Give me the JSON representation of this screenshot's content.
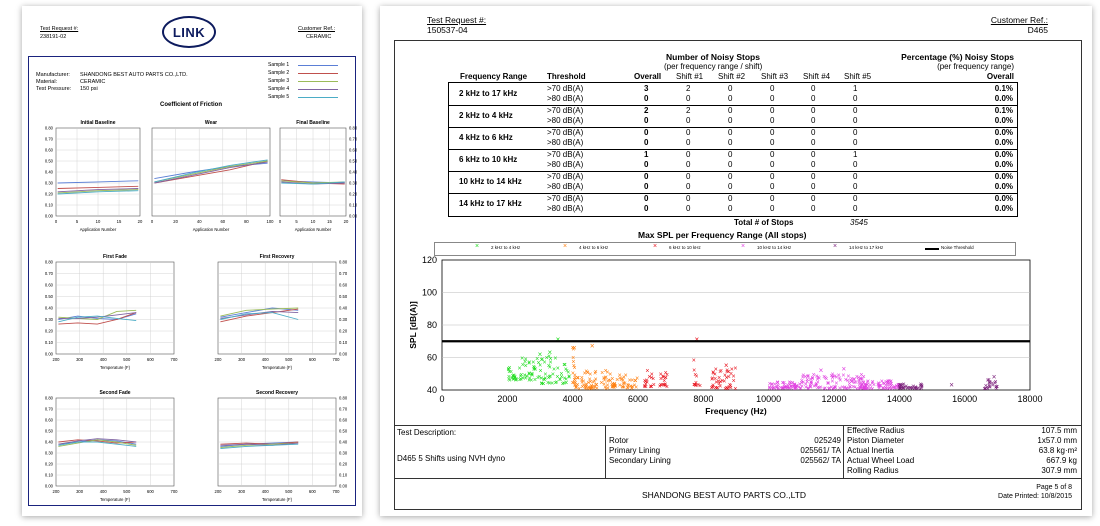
{
  "left_page": {
    "test_request_label": "Test Request #:",
    "test_request_value": "238191-02",
    "customer_ref_label": "Customer Ref.:",
    "customer_ref_value": "CERAMIC",
    "logo_text": "LINK",
    "info": [
      {
        "label": "Manufacturer:",
        "value": "SHANDONG BEST AUTO PARTS CO.,LTD."
      },
      {
        "label": "Material:",
        "value": "CERAMIC"
      },
      {
        "label": "Test Pressure:",
        "value": "150 psi"
      }
    ],
    "samples": [
      {
        "name": "Sample 1",
        "color": "#5b7fd6"
      },
      {
        "name": "Sample 2",
        "color": "#c0504d"
      },
      {
        "name": "Sample 3",
        "color": "#9bbb59"
      },
      {
        "name": "Sample 4",
        "color": "#8064a2"
      },
      {
        "name": "Sample 5",
        "color": "#4bacc6"
      }
    ],
    "cof_title": "Coefficient of Friction",
    "panels": {
      "initial_baseline": "Initial Baseline",
      "wear": "Wear",
      "final_baseline": "Final Baseline",
      "first_fade": "First Fade",
      "first_recovery": "First Recovery",
      "second_fade": "Second Fade",
      "second_recovery": "Second Recovery"
    },
    "axis_labels": {
      "application_number": "Application Number",
      "temperature": "Temperature (F)"
    },
    "y_ticks": [
      "0.80",
      "0.70",
      "0.60",
      "0.50",
      "0.40",
      "0.30",
      "0.20",
      "0.10",
      "0.00"
    ],
    "x_ticks_baseline": [
      "0",
      "5",
      "10",
      "15",
      "20"
    ],
    "x_ticks_wear": [
      "0",
      "20",
      "40",
      "60",
      "80",
      "100"
    ],
    "x_ticks_temp": [
      "200",
      "300",
      "400",
      "500",
      "600",
      "700"
    ]
  },
  "right_page": {
    "test_request_label": "Test Request #:",
    "test_request_value": "150537-04",
    "customer_ref_label": "Customer Ref.:",
    "customer_ref_value": "D465",
    "table_title_1": "Number of Noisy Stops",
    "table_subtitle_1": "(per frequency range / shift)",
    "table_title_2": "Percentage (%) Noisy Stops",
    "table_subtitle_2": "(per frequency range)",
    "columns": [
      "Frequency Range",
      "Threshold",
      "Overall",
      "Shift #1",
      "Shift #2",
      "Shift #3",
      "Shift #4",
      "Shift #5",
      "Overall"
    ],
    "rows": [
      {
        "range": "2 kHz to 17 kHz",
        "sub": [
          {
            "threshold": ">70 dB(A)",
            "overall": "3",
            "s1": "2",
            "s2": "0",
            "s3": "0",
            "s4": "0",
            "s5": "1",
            "pct": "0.1%"
          },
          {
            "threshold": ">80 dB(A)",
            "overall": "0",
            "s1": "0",
            "s2": "0",
            "s3": "0",
            "s4": "0",
            "s5": "0",
            "pct": "0.0%"
          }
        ]
      },
      {
        "range": "2 kHz to 4 kHz",
        "sub": [
          {
            "threshold": ">70 dB(A)",
            "overall": "2",
            "s1": "2",
            "s2": "0",
            "s3": "0",
            "s4": "0",
            "s5": "0",
            "pct": "0.1%"
          },
          {
            "threshold": ">80 dB(A)",
            "overall": "0",
            "s1": "0",
            "s2": "0",
            "s3": "0",
            "s4": "0",
            "s5": "0",
            "pct": "0.0%"
          }
        ]
      },
      {
        "range": "4 kHz to 6 kHz",
        "sub": [
          {
            "threshold": ">70 dB(A)",
            "overall": "0",
            "s1": "0",
            "s2": "0",
            "s3": "0",
            "s4": "0",
            "s5": "0",
            "pct": "0.0%"
          },
          {
            "threshold": ">80 dB(A)",
            "overall": "0",
            "s1": "0",
            "s2": "0",
            "s3": "0",
            "s4": "0",
            "s5": "0",
            "pct": "0.0%"
          }
        ]
      },
      {
        "range": "6 kHz to 10 kHz",
        "sub": [
          {
            "threshold": ">70 dB(A)",
            "overall": "1",
            "s1": "0",
            "s2": "0",
            "s3": "0",
            "s4": "0",
            "s5": "1",
            "pct": "0.0%"
          },
          {
            "threshold": ">80 dB(A)",
            "overall": "0",
            "s1": "0",
            "s2": "0",
            "s3": "0",
            "s4": "0",
            "s5": "0",
            "pct": "0.0%"
          }
        ]
      },
      {
        "range": "10 kHz to 14 kHz",
        "sub": [
          {
            "threshold": ">70 dB(A)",
            "overall": "0",
            "s1": "0",
            "s2": "0",
            "s3": "0",
            "s4": "0",
            "s5": "0",
            "pct": "0.0%"
          },
          {
            "threshold": ">80 dB(A)",
            "overall": "0",
            "s1": "0",
            "s2": "0",
            "s3": "0",
            "s4": "0",
            "s5": "0",
            "pct": "0.0%"
          }
        ]
      },
      {
        "range": "14 kHz to 17 kHz",
        "sub": [
          {
            "threshold": ">70 dB(A)",
            "overall": "0",
            "s1": "0",
            "s2": "0",
            "s3": "0",
            "s4": "0",
            "s5": "0",
            "pct": "0.0%"
          },
          {
            "threshold": ">80 dB(A)",
            "overall": "0",
            "s1": "0",
            "s2": "0",
            "s3": "0",
            "s4": "0",
            "s5": "0",
            "pct": "0.0%"
          }
        ]
      }
    ],
    "total_label": "Total # of Stops",
    "total_value": "3545",
    "chart_title": "Max SPL per Frequency Range (All stops)",
    "legend": [
      {
        "label": "2 kHz to 4 kHz",
        "color": "#22dd22"
      },
      {
        "label": "4 kHz to 6 kHz",
        "color": "#ff7f0e"
      },
      {
        "label": "6 kHz to 10 kHz",
        "color": "#e8141e"
      },
      {
        "label": "10 kHz to 14 kHz",
        "color": "#e040e0"
      },
      {
        "label": "14 kHz to 17 kHz",
        "color": "#7a1f7a"
      },
      {
        "label": "Noise Threshold",
        "color": "#000000"
      }
    ],
    "description_label": "Test Description:",
    "description_value": "D465 5 Shifts using NVH dyno",
    "components": [
      {
        "label": "Rotor",
        "value": "025249"
      },
      {
        "label": "Primary Lining",
        "value": "025561/ TA"
      },
      {
        "label": "Secondary Lining",
        "value": "025562/ TA"
      }
    ],
    "specs": [
      {
        "label": "Effective Radius",
        "value": "107.5 mm"
      },
      {
        "label": "Piston Diameter",
        "value": "1x57.0 mm"
      },
      {
        "label": "Actual Inertia",
        "value": "63.8 kg·m²"
      },
      {
        "label": "Actual Wheel Load",
        "value": "667.9 kg"
      },
      {
        "label": "Rolling Radius",
        "value": "307.9 mm"
      }
    ],
    "footer_company": "SHANDONG BEST AUTO PARTS CO.,LTD",
    "page_label": "Page 5 of 8",
    "date_label": "Date Printed: 10/8/2015"
  },
  "chart_data": {
    "type": "scatter",
    "title": "Max SPL per Frequency Range (All stops)",
    "xlabel": "Frequency (Hz)",
    "ylabel": "SPL [dB(A)]",
    "xlim": [
      0,
      18000
    ],
    "ylim": [
      40,
      120
    ],
    "x_ticks": [
      0,
      2000,
      4000,
      6000,
      8000,
      10000,
      12000,
      14000,
      16000,
      18000
    ],
    "y_ticks": [
      40,
      60,
      80,
      100,
      120
    ],
    "threshold": 70,
    "legend_placement": "top",
    "series": [
      {
        "name": "2 kHz to 4 kHz",
        "color": "#22dd22",
        "clusters": [
          [
            2000,
            2400,
            46,
            54
          ],
          [
            2400,
            3000,
            46,
            60
          ],
          [
            3000,
            3600,
            44,
            62
          ],
          [
            3600,
            3900,
            44,
            56
          ]
        ],
        "peaks": [
          [
            3550,
            71
          ],
          [
            3300,
            63
          ],
          [
            3000,
            62
          ]
        ]
      },
      {
        "name": "4 kHz to 6 kHz",
        "color": "#ff7f0e",
        "clusters": [
          [
            4000,
            5200,
            41,
            52
          ],
          [
            5200,
            6000,
            41,
            50
          ],
          [
            4000,
            4100,
            44,
            67
          ]
        ],
        "peaks": [
          [
            4600,
            67
          ],
          [
            4050,
            66
          ]
        ]
      },
      {
        "name": "6 kHz to 10 kHz",
        "color": "#e8141e",
        "clusters": [
          [
            6200,
            6500,
            42,
            52
          ],
          [
            6600,
            6900,
            42,
            51
          ],
          [
            7700,
            7900,
            42,
            66
          ],
          [
            8200,
            9000,
            41,
            54
          ]
        ],
        "peaks": [
          [
            7800,
            71
          ],
          [
            8700,
            55
          ]
        ]
      },
      {
        "name": "10 kHz to 14 kHz",
        "color": "#e040e0",
        "clusters": [
          [
            10000,
            11000,
            41,
            45
          ],
          [
            11000,
            13000,
            41,
            50
          ],
          [
            12800,
            14000,
            41,
            46
          ]
        ],
        "peaks": [
          [
            12300,
            53
          ],
          [
            11600,
            52
          ],
          [
            13600,
            45
          ]
        ]
      },
      {
        "name": "14 kHz to 17 kHz",
        "color": "#7a1f7a",
        "clusters": [
          [
            14000,
            14700,
            41,
            44
          ],
          [
            16600,
            17000,
            41,
            47
          ]
        ],
        "peaks": [
          [
            15600,
            43
          ],
          [
            16900,
            48
          ]
        ]
      }
    ]
  }
}
